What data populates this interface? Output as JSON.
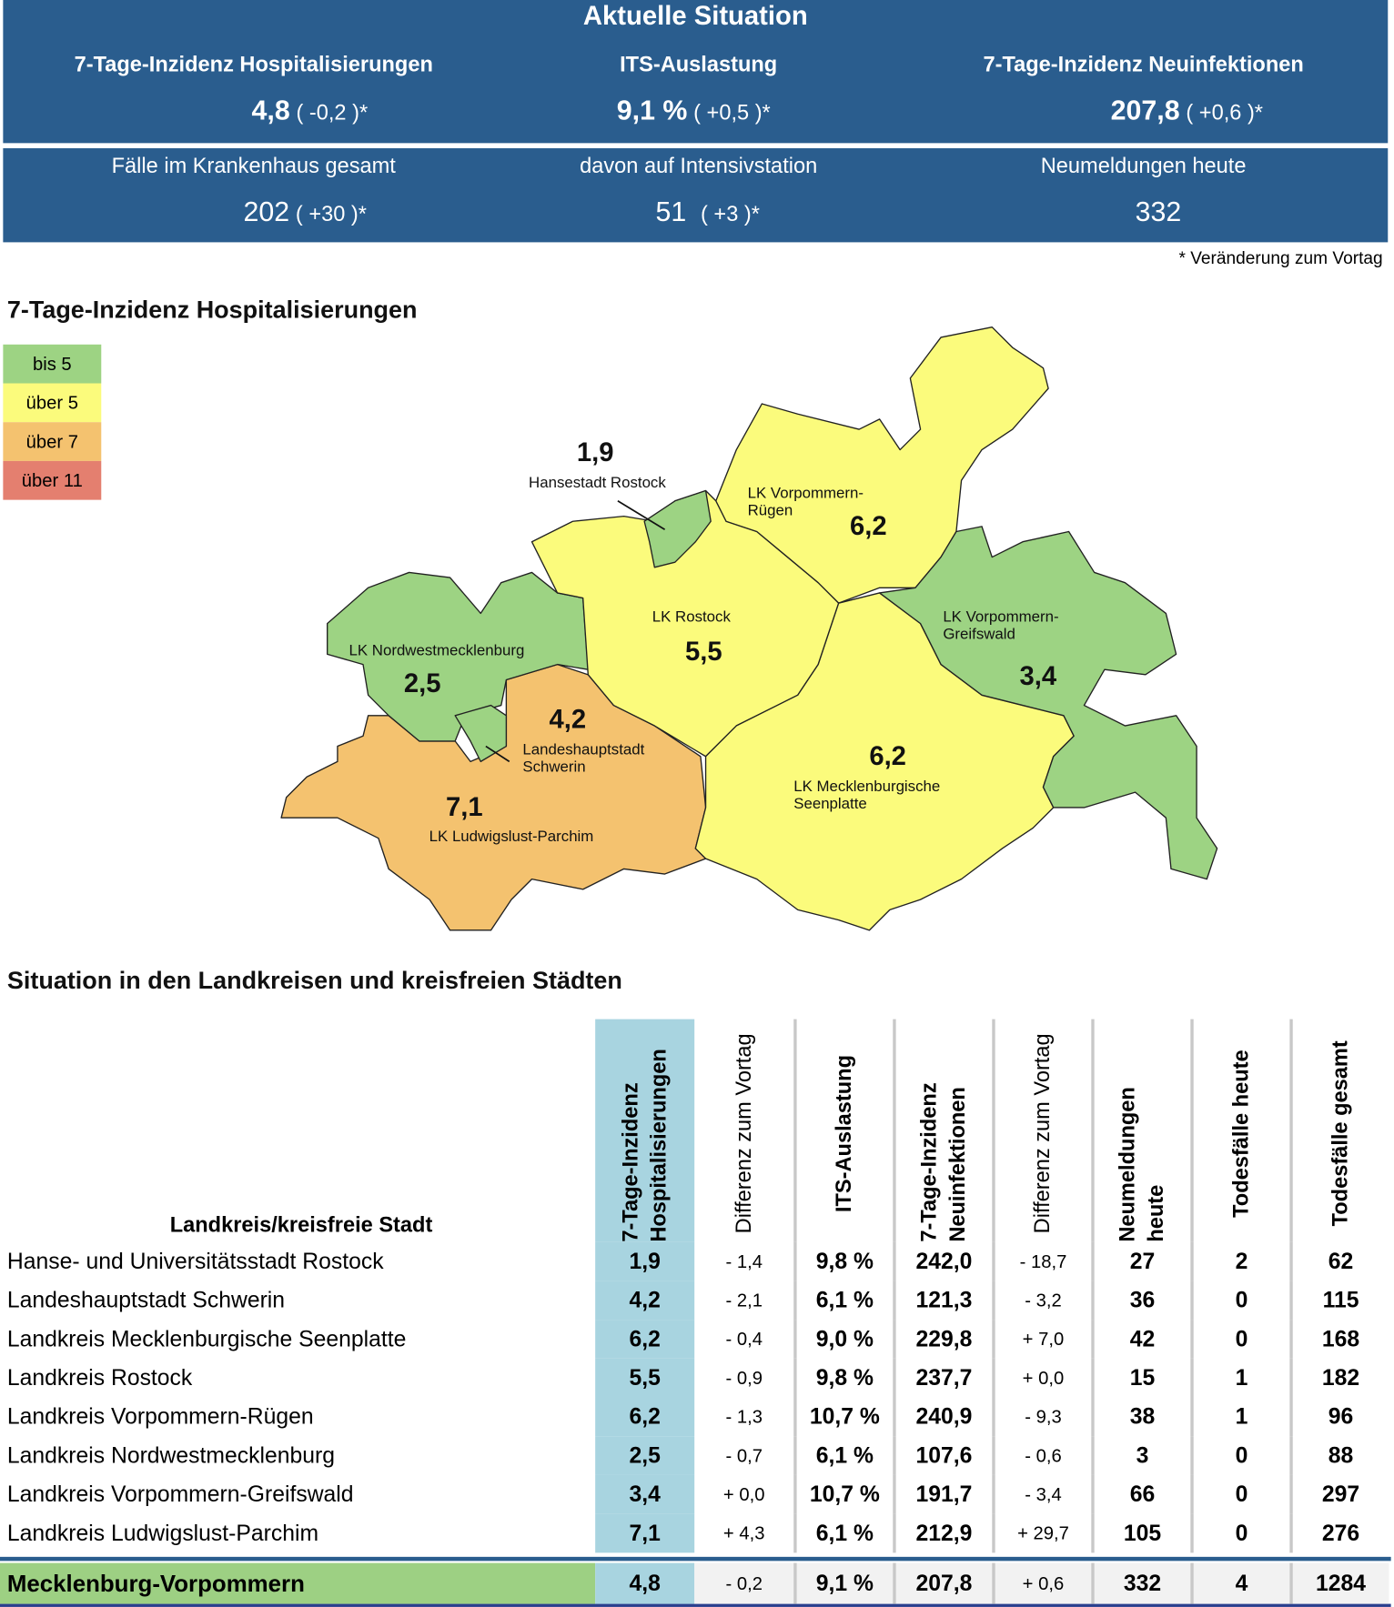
{
  "header": {
    "title": "Aktuelle Situation",
    "kpis": [
      {
        "label": "7-Tage-Inzidenz Hospitalisierungen",
        "value": "4,8",
        "change": "( -0,2 )*"
      },
      {
        "label": "ITS-Auslastung",
        "value": "9,1 %",
        "change": "( +0,5 )*"
      },
      {
        "label": "7-Tage-Inzidenz Neuinfektionen",
        "value": "207,8",
        "change": "( +0,6 )*"
      },
      {
        "label": "Fälle im Krankenhaus gesamt",
        "value": "202",
        "change": "( +30 )*"
      },
      {
        "label": "davon auf Intensivstation",
        "value": "51",
        "change": "( +3 )*"
      },
      {
        "label": "Neumeldungen heute",
        "value": "332",
        "change": ""
      }
    ],
    "note": "* Veränderung zum Vortag"
  },
  "map": {
    "title": "7-Tage-Inzidenz Hospitalisierungen",
    "legend": [
      {
        "label": "bis 5",
        "color": "#9dd383"
      },
      {
        "label": "über 5",
        "color": "#fbfb7c"
      },
      {
        "label": "über 7",
        "color": "#f4c26f"
      },
      {
        "label": "über 11",
        "color": "#e47f6f"
      }
    ],
    "regions": {
      "hro": {
        "name": "Hansestadt Rostock",
        "value": "1,9"
      },
      "vr": {
        "name1": "LK Vorpommern-",
        "name2": "Rügen",
        "value": "6,2"
      },
      "lro": {
        "name": "LK Rostock",
        "value": "5,5"
      },
      "vg": {
        "name1": "LK Vorpommern-",
        "name2": "Greifswald",
        "value": "3,4"
      },
      "nwm": {
        "name": "LK Nordwestmecklenburg",
        "value": "2,5"
      },
      "sn": {
        "name1": "Landeshauptstadt",
        "name2": "Schwerin",
        "value": "4,2"
      },
      "lup": {
        "name": "LK Ludwigslust-Parchim",
        "value": "7,1"
      },
      "mse": {
        "name1": "LK Mecklenburgische",
        "name2": "Seenplatte",
        "value": "6,2"
      }
    }
  },
  "table": {
    "title": "Situation in den Landkreisen und kreisfreien Städten",
    "headers": [
      "Landkreis/kreisfreie Stadt",
      "7-Tage-Inzidenz Hospitalisierungen",
      "Differenz zum Vortag",
      "ITS-Auslastung",
      "7-Tage-Inzidenz Neuinfektionen",
      "Differenz zum Vortag",
      "Neumeldungen heute",
      "Todesfälle heute",
      "Todesfälle gesamt"
    ],
    "rows": [
      [
        "Hanse- und Universitätsstadt Rostock",
        "1,9",
        "- 1,4",
        "9,8 %",
        "242,0",
        "- 18,7",
        "27",
        "2",
        "62"
      ],
      [
        "Landeshauptstadt Schwerin",
        "4,2",
        "- 2,1",
        "6,1 %",
        "121,3",
        "- 3,2",
        "36",
        "0",
        "115"
      ],
      [
        "Landkreis Mecklenburgische Seenplatte",
        "6,2",
        "- 0,4",
        "9,0 %",
        "229,8",
        "+ 7,0",
        "42",
        "0",
        "168"
      ],
      [
        "Landkreis Rostock",
        "5,5",
        "- 0,9",
        "9,8 %",
        "237,7",
        "+ 0,0",
        "15",
        "1",
        "182"
      ],
      [
        "Landkreis Vorpommern-Rügen",
        "6,2",
        "- 1,3",
        "10,7 %",
        "240,9",
        "- 9,3",
        "38",
        "1",
        "96"
      ],
      [
        "Landkreis Nordwestmecklenburg",
        "2,5",
        "- 0,7",
        "6,1 %",
        "107,6",
        "- 0,6",
        "3",
        "0",
        "88"
      ],
      [
        "Landkreis Vorpommern-Greifswald",
        "3,4",
        "+ 0,0",
        "10,7 %",
        "191,7",
        "- 3,4",
        "66",
        "0",
        "297"
      ],
      [
        "Landkreis Ludwigslust-Parchim",
        "7,1",
        "+ 4,3",
        "6,1 %",
        "212,9",
        "+ 29,7",
        "105",
        "0",
        "276"
      ]
    ],
    "total": [
      "Mecklenburg-Vorpommern",
      "4,8",
      "- 0,2",
      "9,1 %",
      "207,8",
      "+ 0,6",
      "332",
      "4",
      "1284"
    ]
  }
}
